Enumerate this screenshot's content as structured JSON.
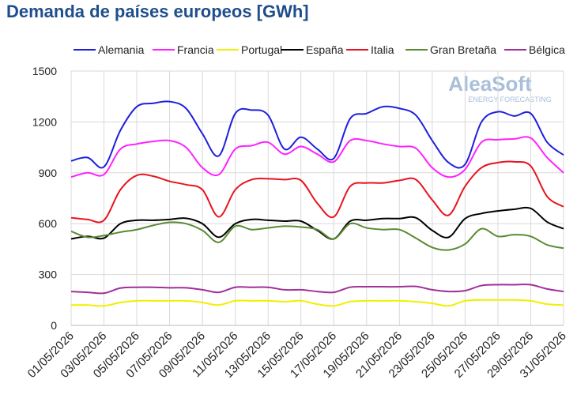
{
  "chart_data": {
    "type": "line",
    "title": "Demanda de países europeos [GWh]",
    "watermark": "AleaSoft",
    "watermark_subtitle": "ENERGY FORECASTING",
    "categories": [
      "01/05/2026",
      null,
      "03/05/2026",
      null,
      "05/05/2026",
      null,
      "07/05/2026",
      null,
      "09/05/2026",
      null,
      "11/05/2026",
      null,
      "13/05/2026",
      null,
      "15/05/2026",
      null,
      "17/05/2026",
      null,
      "19/05/2026",
      null,
      "21/05/2026",
      null,
      "23/05/2026",
      null,
      "25/05/2026",
      null,
      "27/05/2026",
      null,
      "29/05/2026",
      null,
      "31/05/2026"
    ],
    "ylim": [
      0,
      1500
    ],
    "yticks": [
      0,
      300,
      600,
      900,
      1200,
      1500
    ],
    "grid": true,
    "series": [
      {
        "name": "Alemania",
        "color": "#1f1fdc",
        "values": [
          970,
          990,
          935,
          1150,
          1290,
          1310,
          1320,
          1280,
          1130,
          1000,
          1250,
          1270,
          1240,
          1040,
          1110,
          1040,
          985,
          1220,
          1250,
          1290,
          1280,
          1240,
          1090,
          960,
          950,
          1200,
          1260,
          1235,
          1250,
          1080,
          1005
        ]
      },
      {
        "name": "Francia",
        "color": "#ff22ff",
        "values": [
          875,
          900,
          890,
          1040,
          1070,
          1085,
          1090,
          1050,
          930,
          890,
          1040,
          1060,
          1080,
          1010,
          1055,
          1010,
          965,
          1090,
          1090,
          1070,
          1055,
          1045,
          930,
          875,
          920,
          1080,
          1095,
          1100,
          1105,
          990,
          900
        ]
      },
      {
        "name": "Portugal",
        "color": "#f0f000",
        "values": [
          120,
          120,
          115,
          135,
          145,
          145,
          145,
          145,
          135,
          120,
          145,
          145,
          145,
          140,
          145,
          125,
          115,
          140,
          145,
          145,
          145,
          140,
          130,
          115,
          145,
          150,
          150,
          150,
          145,
          125,
          120
        ]
      },
      {
        "name": "España",
        "color": "#000000",
        "values": [
          510,
          525,
          515,
          600,
          620,
          620,
          625,
          632,
          600,
          520,
          600,
          625,
          620,
          615,
          615,
          560,
          510,
          615,
          620,
          630,
          630,
          635,
          560,
          520,
          630,
          660,
          675,
          685,
          690,
          610,
          570
        ]
      },
      {
        "name": "Italia",
        "color": "#e8141e",
        "values": [
          635,
          625,
          620,
          800,
          885,
          880,
          850,
          830,
          800,
          640,
          800,
          860,
          865,
          860,
          855,
          720,
          640,
          820,
          840,
          840,
          855,
          860,
          740,
          650,
          820,
          930,
          960,
          965,
          940,
          760,
          700
        ]
      },
      {
        "name": "Gran Bretaña",
        "color": "#5a8a32",
        "values": [
          555,
          520,
          530,
          550,
          565,
          590,
          608,
          600,
          560,
          490,
          585,
          565,
          575,
          585,
          580,
          565,
          510,
          600,
          575,
          565,
          565,
          515,
          460,
          445,
          480,
          570,
          525,
          535,
          525,
          475,
          455
        ]
      },
      {
        "name": "Bélgica",
        "color": "#a0309a",
        "values": [
          200,
          195,
          190,
          220,
          225,
          225,
          222,
          222,
          210,
          195,
          225,
          225,
          225,
          210,
          210,
          200,
          195,
          225,
          228,
          228,
          228,
          230,
          210,
          200,
          205,
          235,
          240,
          240,
          240,
          215,
          200
        ]
      }
    ]
  }
}
